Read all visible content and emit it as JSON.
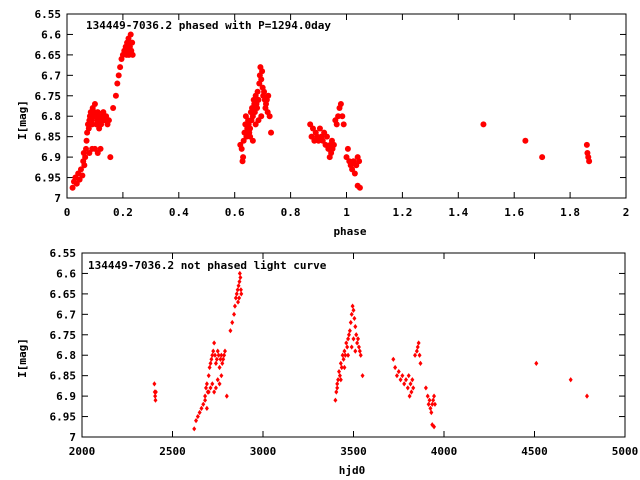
{
  "chart_data": [
    {
      "type": "scatter",
      "title": "134449-7036.2 phased with P=1294.0day",
      "xlabel": "phase",
      "ylabel": "I[mag]",
      "xlim": [
        0,
        2
      ],
      "ylim": [
        6.55,
        7.0
      ],
      "y_inverted": true,
      "x_ticks": [
        "0",
        "0.2",
        "0.4",
        "0.6",
        "0.8",
        "1",
        "1.2",
        "1.4",
        "1.6",
        "1.8",
        "2"
      ],
      "y_ticks": [
        "6.55",
        "6.6",
        "6.65",
        "6.7",
        "6.75",
        "6.8",
        "6.85",
        "6.9",
        "6.95",
        "7"
      ],
      "marker": "filled-circle-large",
      "color": "#ff0000",
      "points": [
        [
          0.02,
          6.975
        ],
        [
          0.025,
          6.96
        ],
        [
          0.03,
          6.95
        ],
        [
          0.035,
          6.965
        ],
        [
          0.04,
          6.94
        ],
        [
          0.045,
          6.955
        ],
        [
          0.05,
          6.93
        ],
        [
          0.055,
          6.945
        ],
        [
          0.058,
          6.91
        ],
        [
          0.06,
          6.89
        ],
        [
          0.062,
          6.92
        ],
        [
          0.065,
          6.9
        ],
        [
          0.068,
          6.88
        ],
        [
          0.07,
          6.86
        ],
        [
          0.072,
          6.84
        ],
        [
          0.075,
          6.82
        ],
        [
          0.078,
          6.83
        ],
        [
          0.08,
          6.81
        ],
        [
          0.082,
          6.8
        ],
        [
          0.085,
          6.79
        ],
        [
          0.088,
          6.81
        ],
        [
          0.09,
          6.82
        ],
        [
          0.092,
          6.78
        ],
        [
          0.095,
          6.8
        ],
        [
          0.098,
          6.79
        ],
        [
          0.1,
          6.77
        ],
        [
          0.102,
          6.8
        ],
        [
          0.105,
          6.82
        ],
        [
          0.108,
          6.81
        ],
        [
          0.11,
          6.79
        ],
        [
          0.112,
          6.8
        ],
        [
          0.115,
          6.83
        ],
        [
          0.118,
          6.81
        ],
        [
          0.12,
          6.8
        ],
        [
          0.122,
          6.82
        ],
        [
          0.125,
          6.81
        ],
        [
          0.128,
          6.8
        ],
        [
          0.13,
          6.79
        ],
        [
          0.135,
          6.81
        ],
        [
          0.14,
          6.8
        ],
        [
          0.145,
          6.82
        ],
        [
          0.15,
          6.81
        ],
        [
          0.09,
          6.88
        ],
        [
          0.08,
          6.89
        ],
        [
          0.1,
          6.88
        ],
        [
          0.11,
          6.89
        ],
        [
          0.12,
          6.88
        ],
        [
          0.155,
          6.9
        ],
        [
          0.165,
          6.78
        ],
        [
          0.175,
          6.75
        ],
        [
          0.18,
          6.72
        ],
        [
          0.185,
          6.7
        ],
        [
          0.19,
          6.68
        ],
        [
          0.195,
          6.66
        ],
        [
          0.2,
          6.65
        ],
        [
          0.205,
          6.64
        ],
        [
          0.21,
          6.63
        ],
        [
          0.213,
          6.65
        ],
        [
          0.215,
          6.62
        ],
        [
          0.218,
          6.64
        ],
        [
          0.22,
          6.61
        ],
        [
          0.222,
          6.65
        ],
        [
          0.225,
          6.63
        ],
        [
          0.228,
          6.6
        ],
        [
          0.23,
          6.64
        ],
        [
          0.233,
          6.62
        ],
        [
          0.235,
          6.65
        ],
        [
          0.62,
          6.87
        ],
        [
          0.625,
          6.88
        ],
        [
          0.628,
          6.91
        ],
        [
          0.63,
          6.9
        ],
        [
          0.632,
          6.86
        ],
        [
          0.635,
          6.84
        ],
        [
          0.638,
          6.82
        ],
        [
          0.64,
          6.8
        ],
        [
          0.642,
          6.85
        ],
        [
          0.645,
          6.83
        ],
        [
          0.648,
          6.81
        ],
        [
          0.65,
          6.82
        ],
        [
          0.652,
          6.84
        ],
        [
          0.655,
          6.83
        ],
        [
          0.658,
          6.79
        ],
        [
          0.66,
          6.81
        ],
        [
          0.662,
          6.78
        ],
        [
          0.665,
          6.8
        ],
        [
          0.668,
          6.76
        ],
        [
          0.67,
          6.77
        ],
        [
          0.672,
          6.79
        ],
        [
          0.675,
          6.75
        ],
        [
          0.678,
          6.77
        ],
        [
          0.68,
          6.78
        ],
        [
          0.682,
          6.74
        ],
        [
          0.685,
          6.76
        ],
        [
          0.688,
          6.72
        ],
        [
          0.69,
          6.7
        ],
        [
          0.692,
          6.68
        ],
        [
          0.695,
          6.71
        ],
        [
          0.698,
          6.69
        ],
        [
          0.7,
          6.73
        ],
        [
          0.702,
          6.75
        ],
        [
          0.705,
          6.74
        ],
        [
          0.708,
          6.76
        ],
        [
          0.71,
          6.78
        ],
        [
          0.712,
          6.77
        ],
        [
          0.715,
          6.76
        ],
        [
          0.718,
          6.79
        ],
        [
          0.72,
          6.75
        ],
        [
          0.725,
          6.8
        ],
        [
          0.73,
          6.84
        ],
        [
          0.655,
          6.85
        ],
        [
          0.665,
          6.86
        ],
        [
          0.675,
          6.82
        ],
        [
          0.685,
          6.81
        ],
        [
          0.695,
          6.8
        ],
        [
          0.87,
          6.82
        ],
        [
          0.875,
          6.85
        ],
        [
          0.88,
          6.83
        ],
        [
          0.885,
          6.86
        ],
        [
          0.89,
          6.84
        ],
        [
          0.895,
          6.85
        ],
        [
          0.9,
          6.86
        ],
        [
          0.905,
          6.83
        ],
        [
          0.91,
          6.85
        ],
        [
          0.915,
          6.86
        ],
        [
          0.92,
          6.84
        ],
        [
          0.925,
          6.87
        ],
        [
          0.93,
          6.85
        ],
        [
          0.935,
          6.88
        ],
        [
          0.94,
          6.9
        ],
        [
          0.942,
          6.87
        ],
        [
          0.945,
          6.89
        ],
        [
          0.948,
          6.86
        ],
        [
          0.95,
          6.88
        ],
        [
          0.955,
          6.87
        ],
        [
          0.96,
          6.81
        ],
        [
          0.965,
          6.82
        ],
        [
          0.97,
          6.8
        ],
        [
          0.975,
          6.78
        ],
        [
          0.98,
          6.77
        ],
        [
          0.985,
          6.8
        ],
        [
          0.99,
          6.82
        ],
        [
          1.0,
          6.9
        ],
        [
          1.005,
          6.88
        ],
        [
          1.01,
          6.91
        ],
        [
          1.015,
          6.92
        ],
        [
          1.02,
          6.93
        ],
        [
          1.025,
          6.91
        ],
        [
          1.03,
          6.94
        ],
        [
          1.035,
          6.92
        ],
        [
          1.04,
          6.9
        ],
        [
          1.045,
          6.91
        ],
        [
          1.04,
          6.97
        ],
        [
          1.048,
          6.975
        ],
        [
          1.49,
          6.82
        ],
        [
          1.64,
          6.86
        ],
        [
          1.7,
          6.9
        ],
        [
          1.86,
          6.87
        ],
        [
          1.862,
          6.89
        ],
        [
          1.865,
          6.9
        ],
        [
          1.868,
          6.91
        ]
      ]
    },
    {
      "type": "scatter",
      "title": "134449-7036.2 not phased light curve",
      "xlabel": "hjd0",
      "ylabel": "I[mag]",
      "xlim": [
        2000,
        5000
      ],
      "ylim": [
        6.55,
        7.0
      ],
      "y_inverted": true,
      "x_ticks": [
        "2000",
        "2500",
        "3000",
        "3500",
        "4000",
        "4500",
        "5000"
      ],
      "y_ticks": [
        "6.55",
        "6.6",
        "6.65",
        "6.7",
        "6.75",
        "6.8",
        "6.85",
        "6.9",
        "6.95",
        "7"
      ],
      "marker": "small-diamond",
      "color": "#ff0000",
      "points": [
        [
          2400,
          6.87
        ],
        [
          2402,
          6.89
        ],
        [
          2404,
          6.9
        ],
        [
          2406,
          6.91
        ],
        [
          2408,
          6.89
        ],
        [
          2620,
          6.98
        ],
        [
          2630,
          6.96
        ],
        [
          2640,
          6.95
        ],
        [
          2650,
          6.94
        ],
        [
          2660,
          6.93
        ],
        [
          2670,
          6.92
        ],
        [
          2680,
          6.9
        ],
        [
          2685,
          6.88
        ],
        [
          2690,
          6.87
        ],
        [
          2695,
          6.89
        ],
        [
          2700,
          6.85
        ],
        [
          2705,
          6.83
        ],
        [
          2710,
          6.82
        ],
        [
          2715,
          6.81
        ],
        [
          2720,
          6.8
        ],
        [
          2725,
          6.79
        ],
        [
          2730,
          6.77
        ],
        [
          2735,
          6.8
        ],
        [
          2740,
          6.82
        ],
        [
          2745,
          6.81
        ],
        [
          2750,
          6.79
        ],
        [
          2755,
          6.8
        ],
        [
          2760,
          6.83
        ],
        [
          2765,
          6.81
        ],
        [
          2770,
          6.8
        ],
        [
          2775,
          6.82
        ],
        [
          2780,
          6.81
        ],
        [
          2785,
          6.8
        ],
        [
          2790,
          6.79
        ],
        [
          2700,
          6.89
        ],
        [
          2710,
          6.88
        ],
        [
          2720,
          6.87
        ],
        [
          2730,
          6.89
        ],
        [
          2740,
          6.88
        ],
        [
          2750,
          6.86
        ],
        [
          2760,
          6.87
        ],
        [
          2770,
          6.85
        ],
        [
          2680,
          6.91
        ],
        [
          2690,
          6.93
        ],
        [
          2800,
          6.9
        ],
        [
          2820,
          6.74
        ],
        [
          2830,
          6.72
        ],
        [
          2840,
          6.7
        ],
        [
          2845,
          6.68
        ],
        [
          2850,
          6.66
        ],
        [
          2855,
          6.65
        ],
        [
          2860,
          6.64
        ],
        [
          2865,
          6.63
        ],
        [
          2870,
          6.62
        ],
        [
          2872,
          6.6
        ],
        [
          2875,
          6.61
        ],
        [
          2878,
          6.64
        ],
        [
          2880,
          6.65
        ],
        [
          2868,
          6.66
        ],
        [
          2862,
          6.67
        ],
        [
          3400,
          6.91
        ],
        [
          3405,
          6.89
        ],
        [
          3410,
          6.87
        ],
        [
          3415,
          6.86
        ],
        [
          3420,
          6.84
        ],
        [
          3425,
          6.85
        ],
        [
          3430,
          6.82
        ],
        [
          3435,
          6.83
        ],
        [
          3440,
          6.8
        ],
        [
          3445,
          6.81
        ],
        [
          3450,
          6.79
        ],
        [
          3455,
          6.8
        ],
        [
          3460,
          6.77
        ],
        [
          3465,
          6.78
        ],
        [
          3470,
          6.76
        ],
        [
          3475,
          6.75
        ],
        [
          3480,
          6.74
        ],
        [
          3485,
          6.72
        ],
        [
          3490,
          6.7
        ],
        [
          3495,
          6.68
        ],
        [
          3500,
          6.69
        ],
        [
          3505,
          6.71
        ],
        [
          3510,
          6.73
        ],
        [
          3515,
          6.75
        ],
        [
          3520,
          6.77
        ],
        [
          3525,
          6.76
        ],
        [
          3530,
          6.78
        ],
        [
          3535,
          6.79
        ],
        [
          3540,
          6.8
        ],
        [
          3550,
          6.85
        ],
        [
          3410,
          6.88
        ],
        [
          3430,
          6.86
        ],
        [
          3450,
          6.83
        ],
        [
          3470,
          6.8
        ],
        [
          3490,
          6.78
        ],
        [
          3500,
          6.76
        ],
        [
          3510,
          6.79
        ],
        [
          3720,
          6.81
        ],
        [
          3730,
          6.83
        ],
        [
          3740,
          6.85
        ],
        [
          3750,
          6.84
        ],
        [
          3760,
          6.86
        ],
        [
          3770,
          6.85
        ],
        [
          3780,
          6.87
        ],
        [
          3790,
          6.86
        ],
        [
          3800,
          6.88
        ],
        [
          3805,
          6.85
        ],
        [
          3810,
          6.9
        ],
        [
          3815,
          6.87
        ],
        [
          3820,
          6.89
        ],
        [
          3825,
          6.86
        ],
        [
          3830,
          6.88
        ],
        [
          3840,
          6.8
        ],
        [
          3850,
          6.79
        ],
        [
          3855,
          6.78
        ],
        [
          3860,
          6.77
        ],
        [
          3865,
          6.8
        ],
        [
          3870,
          6.82
        ],
        [
          3900,
          6.88
        ],
        [
          3910,
          6.9
        ],
        [
          3915,
          6.92
        ],
        [
          3920,
          6.91
        ],
        [
          3925,
          6.93
        ],
        [
          3930,
          6.94
        ],
        [
          3935,
          6.92
        ],
        [
          3940,
          6.91
        ],
        [
          3945,
          6.9
        ],
        [
          3950,
          6.92
        ],
        [
          3935,
          6.97
        ],
        [
          3945,
          6.975
        ],
        [
          4510,
          6.82
        ],
        [
          4700,
          6.86
        ],
        [
          4790,
          6.9
        ]
      ]
    }
  ]
}
